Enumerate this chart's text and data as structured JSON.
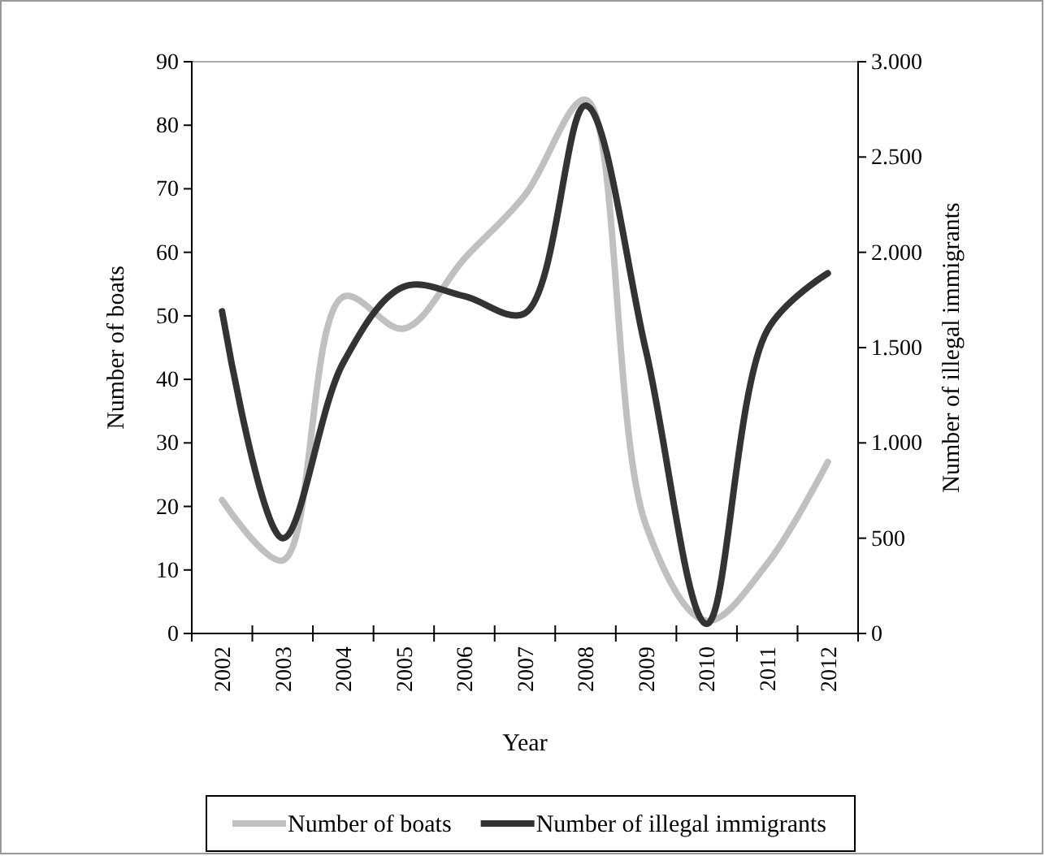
{
  "chart_data": {
    "type": "line",
    "xlabel": "Year",
    "ylabel": "Number of boats",
    "y2label": "Number of illegal immigrants",
    "categories": [
      "2002",
      "2003",
      "2004",
      "2005",
      "2006",
      "2007",
      "2008",
      "2009",
      "2010",
      "2011",
      "2012"
    ],
    "series": [
      {
        "name": "Number of boats",
        "color": "#c0c0c0",
        "values": [
          21,
          11.5,
          53,
          48,
          59,
          69,
          84,
          17,
          2,
          11,
          27
        ]
      },
      {
        "name": "Number of illegal immigrants",
        "color": "#333333",
        "axis": "y2",
        "values": [
          1690,
          500,
          1420,
          1820,
          1770,
          1680,
          2770,
          1480,
          50,
          1590,
          1890
        ]
      }
    ],
    "ylim": [
      0,
      90
    ],
    "yticks": [
      0,
      10,
      20,
      30,
      40,
      50,
      60,
      70,
      80,
      90
    ],
    "y2lim": [
      0,
      3000
    ],
    "y2ticks": [
      0,
      500,
      {
        "value": 1000,
        "label": "1.000"
      },
      {
        "value": 1500,
        "label": "1.500"
      },
      {
        "value": 2000,
        "label": "2.000"
      },
      {
        "value": 2500,
        "label": "2.500"
      },
      {
        "value": 3000,
        "label": "3.000"
      }
    ],
    "grid": false,
    "legend": "bottom",
    "marker": "none",
    "line_style": "solid"
  }
}
